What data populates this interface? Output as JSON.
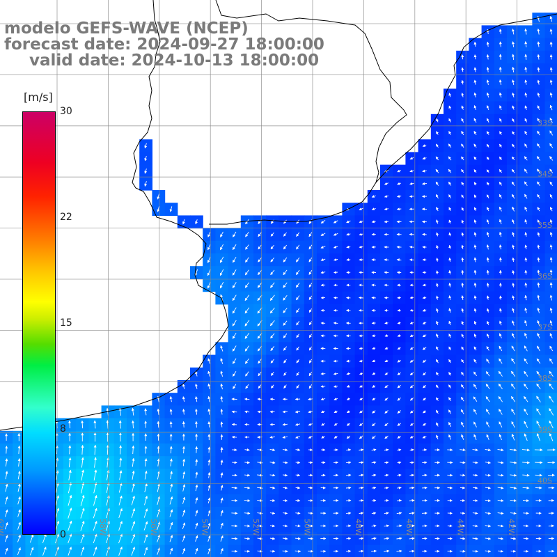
{
  "title": {
    "line1": "modelo GEFS-WAVE (NCEP)",
    "line2": "forecast date: 2024-09-27 18:00:00",
    "line3": "valid date: 2024-10-13 18:00:00"
  },
  "colorbar": {
    "unit_label": "[m/s]",
    "ticks": [
      "30",
      "22",
      "15",
      "8",
      "0"
    ],
    "range": [
      0,
      30
    ],
    "colors": [
      "#0000ff",
      "#0099ff",
      "#33ffcc",
      "#00ee44",
      "#ffff00",
      "#ff7a00",
      "#ff2200",
      "#cc0066"
    ]
  },
  "map": {
    "variable": "wind speed and direction",
    "land_color": "#ffffff",
    "coastline_color": "#000000",
    "grid_color": "#777777",
    "lon_labels": [
      "62W",
      "60W",
      "58W",
      "56W",
      "54W",
      "52W",
      "50W",
      "48W",
      "46W",
      "44W",
      "42W"
    ],
    "lat_labels": [
      "33S",
      "34S",
      "35S",
      "36S",
      "37S",
      "38S",
      "39S",
      "40S"
    ]
  }
}
